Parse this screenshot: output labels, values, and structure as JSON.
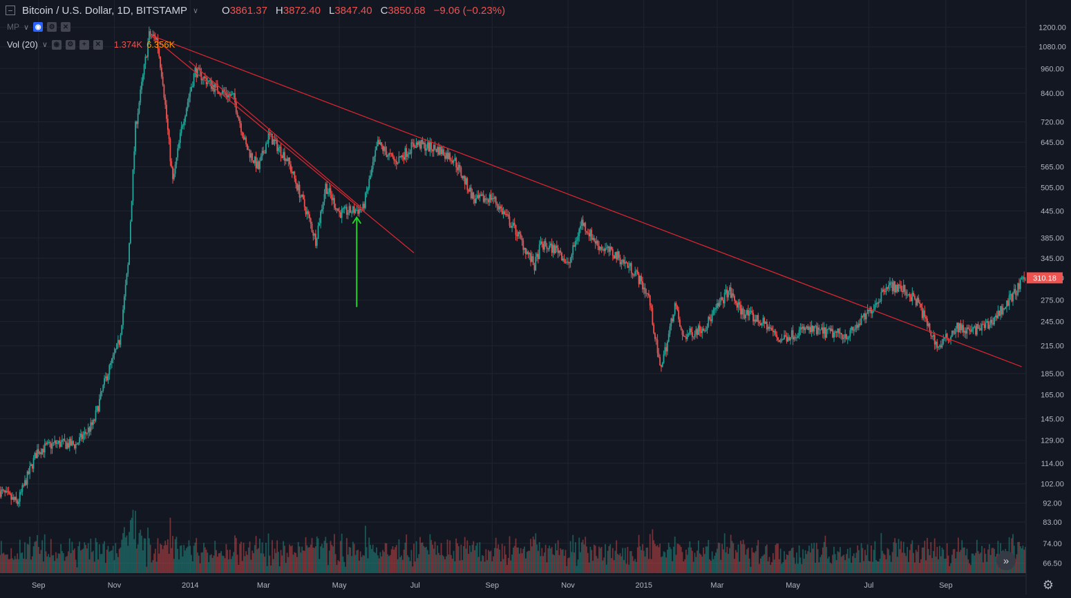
{
  "header": {
    "symbol": "Bitcoin / U.S. Dollar, 1D, BITSTAMP",
    "ohlc": {
      "o_label": "O",
      "o": "3861.37",
      "h_label": "H",
      "h": "3872.40",
      "l_label": "L",
      "l": "3847.40",
      "c_label": "C",
      "c": "3850.68",
      "change": "−9.06 (−0.23%)"
    }
  },
  "indicators": {
    "mp_label": "MP",
    "volume_label": "Vol (20)",
    "volume_value_1": "1.374K",
    "volume_value_2": "6.356K"
  },
  "icons": {
    "collapse": "collapse-icon",
    "eye": "eye-icon",
    "settings_small": "settings-icon",
    "add": "plus-icon",
    "close": "close-icon",
    "scroll_right": "scroll-right-icon",
    "chart_settings": "gear-icon"
  },
  "colors": {
    "background": "#131722",
    "grid": "#1f2430",
    "up": "#26a69a",
    "down": "#ef5350",
    "trendline": "#d6272f",
    "arrow": "#1fd427",
    "axis_text": "#b2b5be",
    "price_label_bg": "#ef5350"
  },
  "chart_data": {
    "type": "candlestick",
    "scale": "log",
    "ylim": [
      63,
      1390
    ],
    "y_ticks": [
      "1200.00",
      "1080.00",
      "960.00",
      "840.00",
      "720.00",
      "645.00",
      "565.00",
      "505.00",
      "445.00",
      "385.00",
      "345.00",
      "310.00",
      "275.00",
      "245.00",
      "215.00",
      "185.00",
      "165.00",
      "145.00",
      "129.00",
      "114.00",
      "102.00",
      "92.00",
      "83.00",
      "74.00",
      "66.50"
    ],
    "x_ticks": [
      "Sep",
      "Nov",
      "2014",
      "Mar",
      "May",
      "Jul",
      "Sep",
      "Nov",
      "2015",
      "Mar",
      "May",
      "Jul",
      "Sep"
    ],
    "x_tick_dates": [
      "2013-09-01",
      "2013-11-01",
      "2014-01-01",
      "2014-03-01",
      "2014-05-01",
      "2014-07-01",
      "2014-09-01",
      "2014-11-01",
      "2015-01-01",
      "2015-03-01",
      "2015-05-01",
      "2015-07-01",
      "2015-09-01"
    ],
    "date_range": [
      "2013-08-01",
      "2015-11-04"
    ],
    "last_price": "310.18",
    "price_path": [
      [
        "2013-08-01",
        98
      ],
      [
        "2013-08-15",
        92
      ],
      [
        "2013-08-31",
        122
      ],
      [
        "2013-09-15",
        127
      ],
      [
        "2013-10-01",
        126
      ],
      [
        "2013-10-15",
        141
      ],
      [
        "2013-10-25",
        180
      ],
      [
        "2013-11-05",
        220
      ],
      [
        "2013-11-12",
        330
      ],
      [
        "2013-11-18",
        700
      ],
      [
        "2013-11-29",
        1150
      ],
      [
        "2013-12-05",
        1130
      ],
      [
        "2013-12-10",
        900
      ],
      [
        "2013-12-18",
        520
      ],
      [
        "2013-12-26",
        720
      ],
      [
        "2014-01-05",
        950
      ],
      [
        "2014-01-20",
        870
      ],
      [
        "2014-02-05",
        820
      ],
      [
        "2014-02-15",
        630
      ],
      [
        "2014-02-25",
        560
      ],
      [
        "2014-03-05",
        670
      ],
      [
        "2014-03-20",
        590
      ],
      [
        "2014-04-05",
        440
      ],
      [
        "2014-04-12",
        380
      ],
      [
        "2014-04-20",
        510
      ],
      [
        "2014-05-01",
        440
      ],
      [
        "2014-05-20",
        450
      ],
      [
        "2014-06-01",
        640
      ],
      [
        "2014-06-15",
        580
      ],
      [
        "2014-07-01",
        640
      ],
      [
        "2014-07-20",
        620
      ],
      [
        "2014-08-01",
        590
      ],
      [
        "2014-08-18",
        470
      ],
      [
        "2014-09-01",
        480
      ],
      [
        "2014-09-20",
        400
      ],
      [
        "2014-10-05",
        330
      ],
      [
        "2014-10-10",
        370
      ],
      [
        "2014-10-25",
        360
      ],
      [
        "2014-11-01",
        330
      ],
      [
        "2014-11-12",
        420
      ],
      [
        "2014-11-25",
        370
      ],
      [
        "2014-12-10",
        350
      ],
      [
        "2014-12-25",
        320
      ],
      [
        "2015-01-05",
        280
      ],
      [
        "2015-01-14",
        190
      ],
      [
        "2015-01-20",
        220
      ],
      [
        "2015-01-26",
        270
      ],
      [
        "2015-02-01",
        225
      ],
      [
        "2015-02-20",
        240
      ],
      [
        "2015-03-10",
        290
      ],
      [
        "2015-03-20",
        260
      ],
      [
        "2015-04-10",
        240
      ],
      [
        "2015-04-20",
        222
      ],
      [
        "2015-05-10",
        235
      ],
      [
        "2015-06-01",
        230
      ],
      [
        "2015-06-15",
        228
      ],
      [
        "2015-06-30",
        255
      ],
      [
        "2015-07-10",
        280
      ],
      [
        "2015-07-15",
        300
      ],
      [
        "2015-07-30",
        290
      ],
      [
        "2015-08-10",
        270
      ],
      [
        "2015-08-20",
        230
      ],
      [
        "2015-08-26",
        213
      ],
      [
        "2015-09-10",
        238
      ],
      [
        "2015-09-20",
        232
      ],
      [
        "2015-10-05",
        240
      ],
      [
        "2015-10-20",
        270
      ],
      [
        "2015-11-04",
        310
      ]
    ],
    "trendlines": [
      {
        "start": [
          "2013-11-30",
          1150
        ],
        "end": [
          "2014-06-30",
          355
        ]
      },
      {
        "start": [
          "2013-11-30",
          1150
        ],
        "end": [
          "2015-11-01",
          192
        ]
      },
      {
        "start": [
          "2013-12-31",
          1000
        ],
        "end": [
          "2014-05-20",
          450
        ]
      }
    ],
    "annotation_arrow": {
      "date": "2014-05-15",
      "from": 265,
      "to": 430
    }
  }
}
